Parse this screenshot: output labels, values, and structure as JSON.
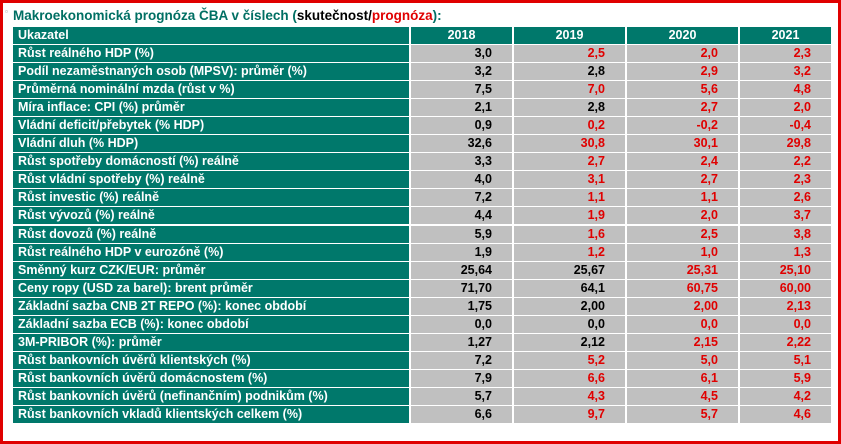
{
  "title": {
    "prefix": "Makroekonomická prognóza ČBA v číslech (",
    "actual": "skutečnost",
    "slash": "/",
    "forecast": "prognóza",
    "suffix": "):"
  },
  "colors": {
    "header_bg": "#00786b",
    "cell_bg": "#c0c0c0",
    "forecast": "#e00000",
    "actual": "#000000",
    "frame": "#e00000"
  },
  "table": {
    "columns": [
      "Ukazatel",
      "2018",
      "2019",
      "2020",
      "2021"
    ],
    "rows": [
      {
        "label": "Růst reálného HDP (%)",
        "values": [
          "3,0",
          "2,5",
          "2,0",
          "2,3"
        ],
        "forecast": [
          false,
          true,
          true,
          true
        ]
      },
      {
        "label": "Podíl nezaměstnaných osob (MPSV): průměr (%)",
        "values": [
          "3,2",
          "2,8",
          "2,9",
          "3,2"
        ],
        "forecast": [
          false,
          false,
          true,
          true
        ]
      },
      {
        "label": "Průměrná nominální mzda (růst v %)",
        "values": [
          "7,5",
          "7,0",
          "5,6",
          "4,8"
        ],
        "forecast": [
          false,
          true,
          true,
          true
        ]
      },
      {
        "label": "Míra inflace: CPI (%) průměr",
        "values": [
          "2,1",
          "2,8",
          "2,7",
          "2,0"
        ],
        "forecast": [
          false,
          false,
          true,
          true
        ]
      },
      {
        "label": "Vládní deficit/přebytek (% HDP)",
        "values": [
          "0,9",
          "0,2",
          "-0,2",
          "-0,4"
        ],
        "forecast": [
          false,
          true,
          true,
          true
        ]
      },
      {
        "label": "Vládní dluh (% HDP)",
        "values": [
          "32,6",
          "30,8",
          "30,1",
          "29,8"
        ],
        "forecast": [
          false,
          true,
          true,
          true
        ]
      },
      {
        "label": "Růst spotřeby domácností (%) reálně",
        "values": [
          "3,3",
          "2,7",
          "2,4",
          "2,2"
        ],
        "forecast": [
          false,
          true,
          true,
          true
        ]
      },
      {
        "label": "Růst vládní spotřeby (%) reálně",
        "values": [
          "4,0",
          "3,1",
          "2,7",
          "2,3"
        ],
        "forecast": [
          false,
          true,
          true,
          true
        ]
      },
      {
        "label": "Růst investic (%) reálně",
        "values": [
          "7,2",
          "1,1",
          "1,1",
          "2,6"
        ],
        "forecast": [
          false,
          true,
          true,
          true
        ]
      },
      {
        "label": "Růst vývozů (%) reálně",
        "values": [
          "4,4",
          "1,9",
          "2,0",
          "3,7"
        ],
        "forecast": [
          false,
          true,
          true,
          true
        ]
      },
      {
        "label": "Růst dovozů (%) reálně",
        "values": [
          "5,9",
          "1,6",
          "2,5",
          "3,8"
        ],
        "forecast": [
          false,
          true,
          true,
          true
        ]
      },
      {
        "label": "Růst reálného HDP v eurozóně (%)",
        "values": [
          "1,9",
          "1,2",
          "1,0",
          "1,3"
        ],
        "forecast": [
          false,
          true,
          true,
          true
        ]
      },
      {
        "label": "Směnný kurz CZK/EUR: průměr",
        "values": [
          "25,64",
          "25,67",
          "25,31",
          "25,10"
        ],
        "forecast": [
          false,
          false,
          true,
          true
        ]
      },
      {
        "label": "Ceny ropy (USD za barel): brent průměr",
        "values": [
          "71,70",
          "64,1",
          "60,75",
          "60,00"
        ],
        "forecast": [
          false,
          false,
          true,
          true
        ]
      },
      {
        "label": "Základní sazba CNB 2T REPO (%): konec období",
        "values": [
          "1,75",
          "2,00",
          "2,00",
          "2,13"
        ],
        "forecast": [
          false,
          false,
          true,
          true
        ]
      },
      {
        "label": "Základní sazba ECB (%): konec období",
        "values": [
          "0,0",
          "0,0",
          "0,0",
          "0,0"
        ],
        "forecast": [
          false,
          false,
          true,
          true
        ]
      },
      {
        "label": "3M-PRIBOR (%): průměr",
        "values": [
          "1,27",
          "2,12",
          "2,15",
          "2,22"
        ],
        "forecast": [
          false,
          false,
          true,
          true
        ]
      },
      {
        "label": "Růst bankovních úvěrů klientských (%)",
        "values": [
          "7,2",
          "5,2",
          "5,0",
          "5,1"
        ],
        "forecast": [
          false,
          true,
          true,
          true
        ]
      },
      {
        "label": "Růst bankovních úvěrů domácnostem (%)",
        "values": [
          "7,9",
          "6,6",
          "6,1",
          "5,9"
        ],
        "forecast": [
          false,
          true,
          true,
          true
        ]
      },
      {
        "label": "Růst bankovních úvěrů (nefinančním) podnikům (%)",
        "values": [
          "5,7",
          "4,3",
          "4,5",
          "4,2"
        ],
        "forecast": [
          false,
          true,
          true,
          true
        ]
      },
      {
        "label": "Růst bankovních vkladů klientských celkem (%)",
        "values": [
          "6,6",
          "9,7",
          "5,7",
          "4,6"
        ],
        "forecast": [
          false,
          true,
          true,
          true
        ]
      }
    ]
  }
}
